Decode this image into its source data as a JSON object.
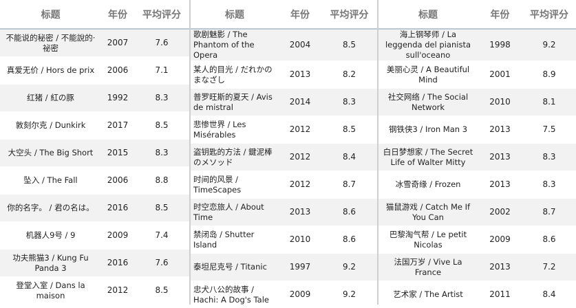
{
  "headers": {
    "title": "标题",
    "year": "年份",
    "rating": "平均评分"
  },
  "blocks": [
    [
      {
        "title": "不能说的秘密 / 不能說的·祕密",
        "year": "2007",
        "rating": "7.6"
      },
      {
        "title": "真爱无价 / Hors de prix",
        "year": "2006",
        "rating": "7.1"
      },
      {
        "title": "红猪 / 紅の豚",
        "year": "1992",
        "rating": "8.3"
      },
      {
        "title": "敦刻尔克 / Dunkirk",
        "year": "2017",
        "rating": "8.5"
      },
      {
        "title": "大空头 / The Big Short",
        "year": "2015",
        "rating": "8.3"
      },
      {
        "title": "坠入 / The Fall",
        "year": "2006",
        "rating": "8.8"
      },
      {
        "title": "你的名字。 / 君の名は。",
        "year": "2016",
        "rating": "8.5"
      },
      {
        "title": "机器人9号 / 9",
        "year": "2009",
        "rating": "7.4"
      },
      {
        "title": "功夫熊猫3 / Kung Fu Panda 3",
        "year": "2016",
        "rating": "7.6"
      },
      {
        "title": "登堂入室 / Dans la maison",
        "year": "2012",
        "rating": "8.5"
      }
    ],
    [
      {
        "title": "歌剧魅影 / The Phantom of the Opera",
        "year": "2004",
        "rating": "8.5"
      },
      {
        "title": "某人的目光 / だれかのまなざし",
        "year": "2013",
        "rating": "8.2"
      },
      {
        "title": "普罗旺斯的夏天 / Avis de mistral",
        "year": "2014",
        "rating": "8.3"
      },
      {
        "title": "悲惨世界 / Les Misérables",
        "year": "2012",
        "rating": "8.5"
      },
      {
        "title": "盗钥匙的方法 / 鍵泥棒のメソッド",
        "year": "2012",
        "rating": "8.4"
      },
      {
        "title": "时间的风景 / TimeScapes",
        "year": "2012",
        "rating": "8.7"
      },
      {
        "title": "时空恋旅人 / About Time",
        "year": "2013",
        "rating": "8.6"
      },
      {
        "title": "禁闭岛 / Shutter Island",
        "year": "2010",
        "rating": "8.6"
      },
      {
        "title": "泰坦尼克号 / Titanic",
        "year": "1997",
        "rating": "9.2"
      },
      {
        "title": "忠犬八公的故事 / Hachi: A Dog's Tale",
        "year": "2009",
        "rating": "9.2"
      }
    ],
    [
      {
        "title": "海上钢琴师 / La leggenda del pianista sull'oceano",
        "year": "1998",
        "rating": "9.2"
      },
      {
        "title": "美丽心灵 / A Beautiful Mind",
        "year": "2001",
        "rating": "8.9"
      },
      {
        "title": "社交网络 / The Social Network",
        "year": "2010",
        "rating": "8.1"
      },
      {
        "title": "钢铁侠3 / Iron Man 3",
        "year": "2013",
        "rating": "7.5"
      },
      {
        "title": "白日梦想家 / The Secret Life of Walter Mitty",
        "year": "2013",
        "rating": "8.3"
      },
      {
        "title": "冰雪奇缘 / Frozen",
        "year": "2013",
        "rating": "8.3"
      },
      {
        "title": "猫鼠游戏 / Catch Me If You Can",
        "year": "2002",
        "rating": "8.7"
      },
      {
        "title": "巴黎淘气帮 / Le petit Nicolas",
        "year": "2009",
        "rating": "8.6"
      },
      {
        "title": "法国万岁 / Vive La France",
        "year": "2013",
        "rating": "7.2"
      },
      {
        "title": "艺术家 / The Artist",
        "year": "2011",
        "rating": "8.4"
      }
    ]
  ]
}
